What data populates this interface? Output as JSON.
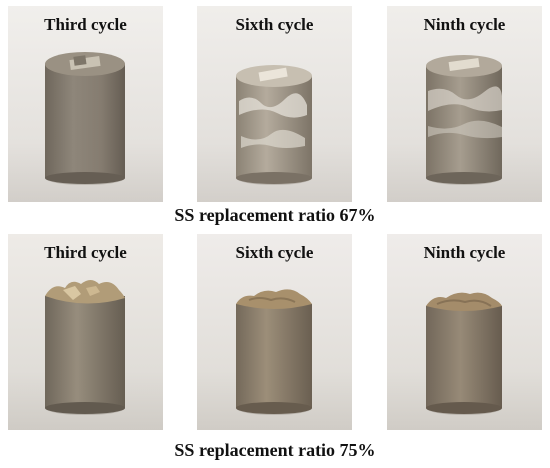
{
  "rows": [
    {
      "caption": "SS replacement ratio 67%",
      "panels": [
        {
          "label": "Third cycle"
        },
        {
          "label": "Sixth cycle"
        },
        {
          "label": "Ninth cycle"
        }
      ]
    },
    {
      "caption": "SS replacement ratio 75%",
      "panels": [
        {
          "label": "Third cycle"
        },
        {
          "label": "Sixth cycle"
        },
        {
          "label": "Ninth cycle"
        }
      ]
    }
  ],
  "colors": {
    "background_wall": "#e9e7e4",
    "table_surface": "#d8d5d1",
    "specimen_body": "#8c8478",
    "specimen_shadow": "#6f675c",
    "salt_crust": "#e6e2da",
    "eroded_top": "#a8947a",
    "text": "#111111"
  }
}
